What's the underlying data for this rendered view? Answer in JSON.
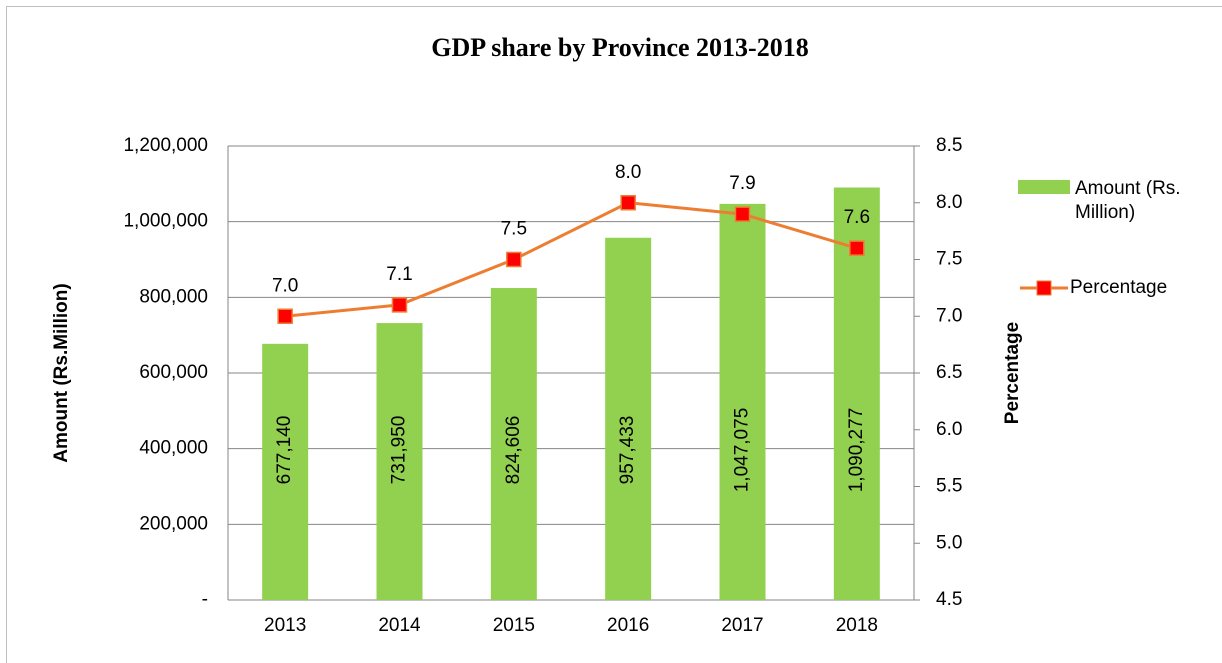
{
  "chart_data": {
    "type": "bar-line",
    "title": "GDP share by Province 2013-2018",
    "categories": [
      "2013",
      "2014",
      "2015",
      "2016",
      "2017",
      "2018"
    ],
    "series": [
      {
        "name": "Amount (Rs. Million)",
        "type": "bar",
        "color": "#92d050",
        "axis": "y",
        "values": [
          677140,
          731950,
          824606,
          957433,
          1047075,
          1090277
        ],
        "value_labels": [
          "677,140",
          "731,950",
          "824,606",
          "957,433",
          "1,047,075",
          "1,090,277"
        ]
      },
      {
        "name": "Percentage",
        "type": "line",
        "color": "#ed7d31",
        "marker_color": "#ff0000",
        "axis": "y2",
        "values": [
          7.0,
          7.1,
          7.5,
          8.0,
          7.9,
          7.6
        ],
        "value_labels": [
          "7.0",
          "7.1",
          "7.5",
          "8.0",
          "7.9",
          "7.6"
        ]
      }
    ],
    "ylabel": "Amount (Rs.Million)",
    "y2label": "Percentage",
    "ylim": [
      0,
      1200000
    ],
    "yticks": [
      {
        "value": 0,
        "label": "-"
      },
      {
        "value": 200000,
        "label": "200,000"
      },
      {
        "value": 400000,
        "label": "400,000"
      },
      {
        "value": 600000,
        "label": "600,000"
      },
      {
        "value": 800000,
        "label": "800,000"
      },
      {
        "value": 1000000,
        "label": "1,000,000"
      },
      {
        "value": 1200000,
        "label": "1,200,000"
      }
    ],
    "y2lim": [
      4.5,
      8.5
    ],
    "y2ticks": [
      4.5,
      {
        "value": 5.0,
        "label": "5.0"
      },
      5.5,
      {
        "value": 6.0,
        "label": "6.0"
      },
      6.5,
      {
        "value": 7.0,
        "label": "7.0"
      },
      7.5,
      {
        "value": 8.0,
        "label": "8.0"
      },
      8.5
    ],
    "grid": true,
    "legend": "right"
  }
}
